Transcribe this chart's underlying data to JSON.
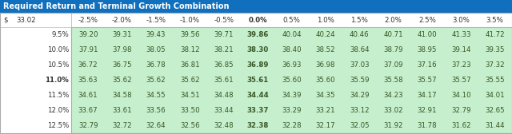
{
  "title": "Required Return and Terminal Growth Combination",
  "title_bg": "#1070BE",
  "title_color": "#FFFFFF",
  "header_label_left": "$",
  "header_value_left": "33.02",
  "col_headers": [
    "-2.5%",
    "-2.0%",
    "-1.5%",
    "-1.0%",
    "-0.5%",
    "0.0%",
    "0.5%",
    "1.0%",
    "1.5%",
    "2.0%",
    "2.5%",
    "3.0%",
    "3.5%"
  ],
  "row_headers": [
    "9.5%",
    "10.0%",
    "10.5%",
    "11.0%",
    "11.5%",
    "12.0%",
    "12.5%"
  ],
  "table_data": [
    [
      39.2,
      39.31,
      39.43,
      39.56,
      39.71,
      39.86,
      40.04,
      40.24,
      40.46,
      40.71,
      41.0,
      41.33,
      41.72
    ],
    [
      37.91,
      37.98,
      38.05,
      38.12,
      38.21,
      38.3,
      38.4,
      38.52,
      38.64,
      38.79,
      38.95,
      39.14,
      39.35
    ],
    [
      36.72,
      36.75,
      36.78,
      36.81,
      36.85,
      36.89,
      36.93,
      36.98,
      37.03,
      37.09,
      37.16,
      37.23,
      37.32
    ],
    [
      35.63,
      35.62,
      35.62,
      35.62,
      35.61,
      35.61,
      35.6,
      35.6,
      35.59,
      35.58,
      35.57,
      35.57,
      35.55
    ],
    [
      34.61,
      34.58,
      34.55,
      34.51,
      34.48,
      34.44,
      34.39,
      34.35,
      34.29,
      34.23,
      34.17,
      34.1,
      34.01
    ],
    [
      33.67,
      33.61,
      33.56,
      33.5,
      33.44,
      33.37,
      33.29,
      33.21,
      33.12,
      33.02,
      32.91,
      32.79,
      32.65
    ],
    [
      32.79,
      32.72,
      32.64,
      32.56,
      32.48,
      32.38,
      32.28,
      32.17,
      32.05,
      31.92,
      31.78,
      31.62,
      31.44
    ]
  ],
  "cell_bg": "#C6EFCE",
  "cell_text_color": "#375623",
  "header_bg": "#FFFFFF",
  "header_text_color": "#333333",
  "bold_col_idx": 5,
  "bold_row_idx": 3,
  "title_fontsize": 7.0,
  "header_fontsize": 6.2,
  "data_fontsize": 6.2
}
